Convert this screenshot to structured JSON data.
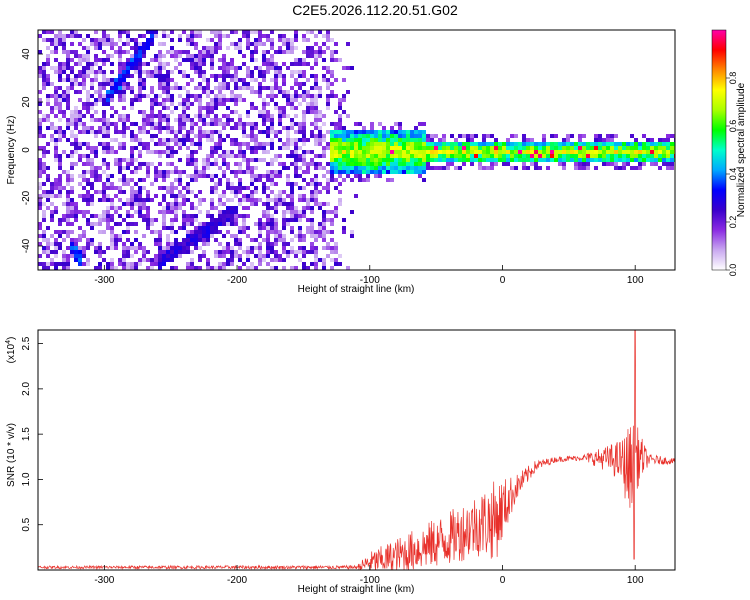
{
  "title": "C2E5.2026.112.20.51.G02",
  "chart_data": [
    {
      "type": "heatmap",
      "xlabel": "Height of straight line (km)",
      "ylabel": "Frequency (Hz)",
      "xlim": [
        -350,
        130
      ],
      "ylim": [
        -50,
        50
      ],
      "xticks": [
        -300,
        -200,
        -100,
        0,
        100
      ],
      "yticks": [
        -40,
        -20,
        0,
        20,
        40
      ],
      "colorbar": {
        "label": "Normalized spectral amplitude",
        "range": [
          0,
          1
        ],
        "ticks": [
          0.0,
          0.2,
          0.4,
          0.6,
          0.8
        ],
        "colormap": [
          "#ffffff",
          "#c9a8f0",
          "#8a2be2",
          "#3a00cc",
          "#0000ff",
          "#00aaff",
          "#00ffcc",
          "#00ff00",
          "#aaff00",
          "#ffff00",
          "#ff8800",
          "#ff0000",
          "#ff00aa"
        ]
      },
      "features": {
        "noise_region_x": [
          -350,
          -110
        ],
        "signal_band_center_hz": 0,
        "signal_start_x": -130,
        "upper_streak": {
          "x": [
            -300,
            -265
          ],
          "y": [
            22,
            48
          ]
        },
        "lower_streak": {
          "x": [
            -260,
            -205
          ],
          "y": [
            -46,
            -25
          ]
        },
        "left_streak": {
          "x": [
            -328,
            -318
          ],
          "y": [
            -38,
            -46
          ]
        }
      }
    },
    {
      "type": "line",
      "xlabel": "Height of straight line (km)",
      "ylabel": "SNR (10 * v/v)",
      "yscale_label": "(x10",
      "yscale_exp": "4",
      "yscale_close": ")",
      "xlim": [
        -350,
        130
      ],
      "ylim": [
        0,
        26500
      ],
      "xticks": [
        -300,
        -200,
        -100,
        0,
        100
      ],
      "yticks": [
        0.5,
        1.0,
        1.5,
        2.0,
        2.5
      ],
      "color": "#e8302a",
      "envelope": {
        "x": [
          -350,
          -110,
          -100,
          -80,
          -60,
          -40,
          -20,
          -5,
          10,
          25,
          40,
          60,
          80,
          90,
          95,
          100,
          110,
          130
        ],
        "base": [
          300,
          300,
          800,
          1500,
          2500,
          3500,
          5000,
          5500,
          9000,
          11500,
          12200,
          12400,
          12300,
          12000,
          11000,
          12500,
          12200,
          12000
        ],
        "noise": [
          150,
          200,
          1200,
          2000,
          2500,
          3000,
          3500,
          4500,
          1500,
          600,
          300,
          300,
          1500,
          2500,
          5000,
          4000,
          600,
          300
        ]
      },
      "spike_peak": {
        "x": 100,
        "y": 26500
      },
      "spike_min": {
        "x": 100,
        "y": 1200
      }
    }
  ]
}
